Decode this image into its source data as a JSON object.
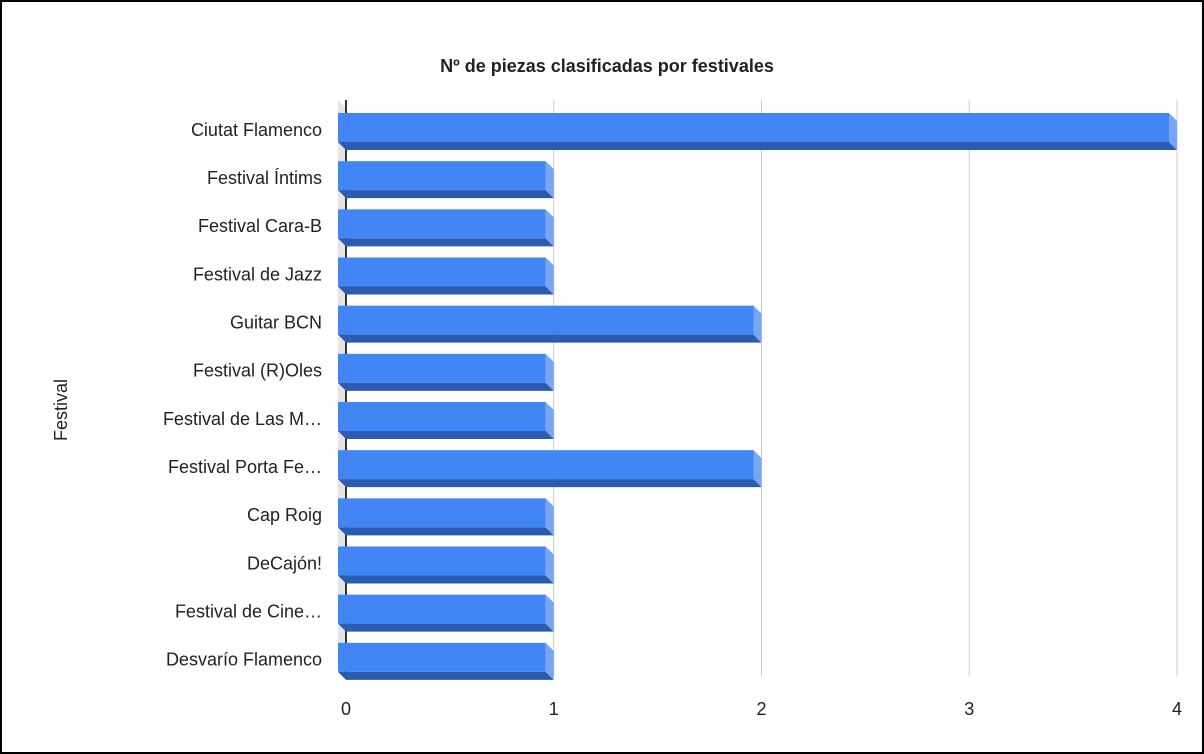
{
  "chart_data": {
    "type": "bar3d_horizontal",
    "title": "Nº de piezas clasificadas por festivales",
    "y_axis_label": "Festival",
    "categories": [
      "Ciutat Flamenco",
      "Festival Íntims",
      "Festival Cara-B",
      "Festival de Jazz",
      "Guitar BCN",
      "Festival (R)Oles",
      "Festival de Las M…",
      "Festival Porta Fe…",
      "Cap Roig",
      "DeCajón!",
      "Festival de Cine…",
      "Desvarío Flamenco"
    ],
    "values": [
      4,
      1,
      1,
      1,
      2,
      1,
      1,
      2,
      1,
      1,
      1,
      1
    ],
    "color": "#4285f4",
    "xlim": [
      0,
      4
    ],
    "xticks": [
      0,
      1,
      2,
      3,
      4
    ],
    "grid": true
  }
}
